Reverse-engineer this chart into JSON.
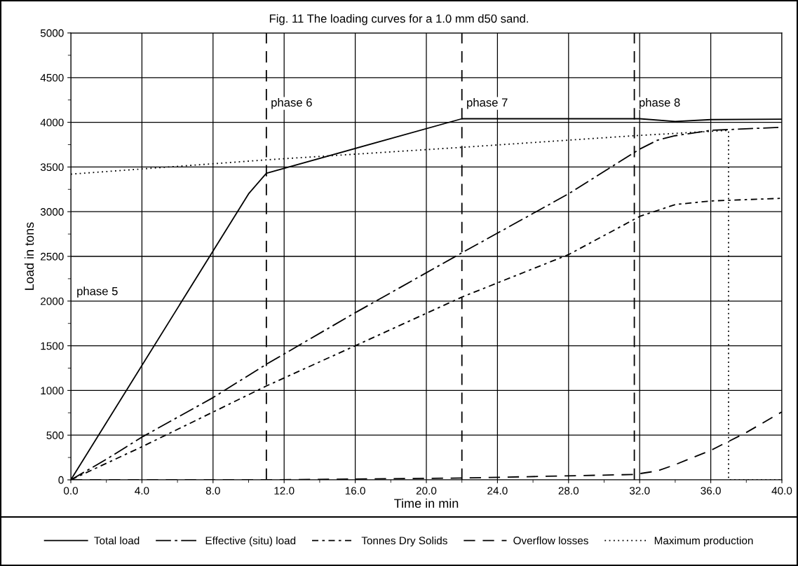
{
  "chart_data": {
    "type": "line",
    "title": "Fig. 11 The loading curves for a 1.0 mm d50 sand.",
    "xlabel": "Time in min",
    "ylabel": "Load in tons",
    "xlim": [
      0,
      40
    ],
    "ylim": [
      0,
      5000
    ],
    "xticks": [
      {
        "value": 0,
        "label": "0.0"
      },
      {
        "value": 4,
        "label": "4.0"
      },
      {
        "value": 8,
        "label": "8.0"
      },
      {
        "value": 12,
        "label": "12.0"
      },
      {
        "value": 16,
        "label": "16.0"
      },
      {
        "value": 20,
        "label": "20.0"
      },
      {
        "value": 24,
        "label": "24.0"
      },
      {
        "value": 28,
        "label": "28.0"
      },
      {
        "value": 32,
        "label": "32.0"
      },
      {
        "value": 36,
        "label": "36.0"
      },
      {
        "value": 40,
        "label": "40.0"
      }
    ],
    "yticks": [
      0,
      500,
      1000,
      1500,
      2000,
      2500,
      3000,
      3500,
      4000,
      4500,
      5000
    ],
    "grid": true,
    "legend": "bottom",
    "marker": "none",
    "series": [
      {
        "name": "Total load",
        "color": "#000000",
        "line_style": "solid",
        "x": [
          0,
          10,
          11,
          22,
          32,
          34,
          36,
          40
        ],
        "values": [
          0,
          3200,
          3430,
          4040,
          4040,
          4010,
          4030,
          4035
        ]
      },
      {
        "name": "Effective (situ) load",
        "color": "#000000",
        "line_style": "dashdot",
        "x": [
          0,
          2,
          4,
          8,
          11,
          16,
          22,
          28,
          32,
          33,
          34,
          36,
          40
        ],
        "values": [
          0,
          230,
          478,
          920,
          1293,
          1870,
          2540,
          3200,
          3700,
          3800,
          3850,
          3910,
          3945
        ]
      },
      {
        "name": "Tonnes Dry Solids",
        "color": "#000000",
        "line_style": "dashdotshort",
        "x": [
          0,
          4,
          11,
          16,
          22,
          28,
          32,
          34,
          36,
          40
        ],
        "values": [
          0,
          370,
          1050,
          1500,
          2045,
          2520,
          2947,
          3080,
          3120,
          3150
        ]
      },
      {
        "name": "Overflow losses",
        "color": "#000000",
        "line_style": "dashed",
        "x": [
          0,
          11,
          22,
          31.7,
          33,
          34,
          36,
          38,
          40
        ],
        "values": [
          0,
          0,
          20,
          60,
          100,
          170,
          330,
          530,
          760
        ]
      },
      {
        "name": "Maximum production",
        "color": "#000000",
        "line_style": "dotted",
        "x": [
          0,
          11,
          22,
          31.7,
          37,
          37,
          40
        ],
        "values": [
          3420,
          3580,
          3720,
          3850,
          3910,
          0,
          0
        ]
      }
    ],
    "ref_lines": [
      {
        "axis": "x",
        "value": 11,
        "label": "phase 6",
        "line_style": "dashed",
        "color": "#000000"
      },
      {
        "axis": "x",
        "value": 22,
        "label": "phase 7",
        "line_style": "dashed",
        "color": "#000000"
      },
      {
        "axis": "x",
        "value": 31.7,
        "label": "phase 8",
        "line_style": "dashed",
        "color": "#000000"
      }
    ],
    "annotations": [
      "phase 5"
    ]
  }
}
